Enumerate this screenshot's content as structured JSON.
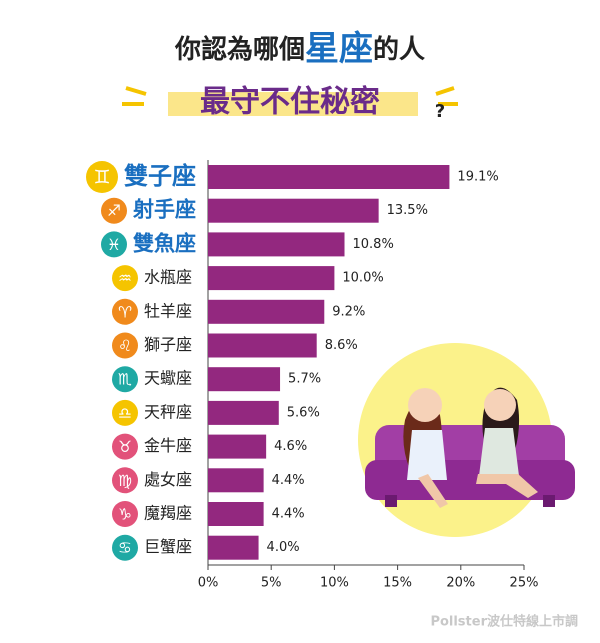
{
  "chart_data": {
    "type": "bar",
    "title": [
      "你認為哪個",
      "星座",
      "的人"
    ],
    "subtitle": "最守不住秘密",
    "subtitle_mark": "?",
    "source": "Pollster波仕特線上市調",
    "categories": [
      "雙子座",
      "射手座",
      "雙魚座",
      "水瓶座",
      "牡羊座",
      "獅子座",
      "天蠍座",
      "天秤座",
      "金牛座",
      "處女座",
      "魔羯座",
      "巨蟹座"
    ],
    "icons": [
      "♊",
      "♐",
      "♓",
      "♒",
      "♈",
      "♌",
      "♏",
      "♎",
      "♉",
      "♍",
      "♑",
      "♋"
    ],
    "icon_colors": [
      "#f5c400",
      "#f08a1c",
      "#1fa9a4",
      "#f5c400",
      "#f08a1c",
      "#f08a1c",
      "#1fa9a4",
      "#f5c400",
      "#e2527a",
      "#e2527a",
      "#e2527a",
      "#1fa9a4"
    ],
    "values": [
      19.1,
      13.5,
      10.8,
      10.0,
      9.2,
      8.6,
      5.7,
      5.6,
      4.6,
      4.4,
      4.4,
      4.0
    ],
    "value_labels": [
      "19.1%",
      "13.5%",
      "10.8%",
      "10.0%",
      "9.2%",
      "8.6%",
      "5.7%",
      "5.6%",
      "4.6%",
      "4.4%",
      "4.4%",
      "4.0%"
    ],
    "color": "#93287f",
    "xlim": [
      0,
      25
    ],
    "xticks": [
      {
        "value": 0,
        "label": "0%"
      },
      {
        "value": 5,
        "label": "5%"
      },
      {
        "value": 10,
        "label": "10%"
      },
      {
        "value": 15,
        "label": "15%"
      },
      {
        "value": 20,
        "label": "20%"
      },
      {
        "value": 25,
        "label": "25%"
      }
    ]
  }
}
